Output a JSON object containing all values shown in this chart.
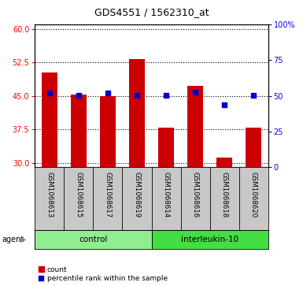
{
  "title": "GDS4551 / 1562310_at",
  "samples": [
    "GSM1068613",
    "GSM1068615",
    "GSM1068617",
    "GSM1068619",
    "GSM1068614",
    "GSM1068616",
    "GSM1068618",
    "GSM1068620"
  ],
  "bar_values": [
    50.2,
    45.2,
    45.0,
    53.2,
    37.8,
    47.2,
    31.2,
    37.8
  ],
  "percentile_values": [
    52.0,
    50.5,
    52.0,
    50.2,
    50.2,
    52.5,
    43.5,
    50.2
  ],
  "bar_color": "#cc0000",
  "dot_color": "#0000cc",
  "ylim_left": [
    29,
    61
  ],
  "ylim_right": [
    0,
    100
  ],
  "yticks_left": [
    30,
    37.5,
    45,
    52.5,
    60
  ],
  "yticks_right": [
    0,
    25,
    50,
    75,
    100
  ],
  "ytick_labels_right": [
    "0",
    "25",
    "50",
    "75",
    "100%"
  ],
  "groups": [
    {
      "label": "control",
      "indices": [
        0,
        1,
        2,
        3
      ],
      "color": "#90ee90"
    },
    {
      "label": "interleukin-10",
      "indices": [
        4,
        5,
        6,
        7
      ],
      "color": "#44dd44"
    }
  ],
  "agent_label": "agent",
  "legend_items": [
    {
      "label": "count",
      "color": "#cc0000"
    },
    {
      "label": "percentile rank within the sample",
      "color": "#0000cc"
    }
  ],
  "background_color": "#c8c8c8",
  "plot_bg": "#ffffff"
}
